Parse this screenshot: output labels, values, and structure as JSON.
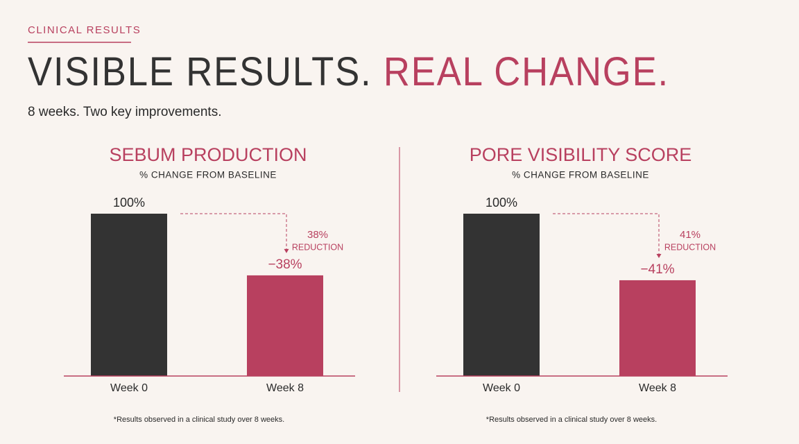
{
  "header": {
    "eyebrow": "CLINICAL RESULTS",
    "title_dark": "VISIBLE RESULTS.",
    "title_accent": "REAL CHANGE.",
    "subtitle": "8 weeks. Two key improvements."
  },
  "chart_data": [
    {
      "type": "bar",
      "title": "SEBUM PRODUCTION",
      "subtitle": "% CHANGE FROM BASELINE",
      "categories": [
        "Week 0",
        "Week 8"
      ],
      "values": [
        100,
        62
      ],
      "value_labels": [
        "100%",
        null
      ],
      "colors": [
        "#333333",
        "#b8405f"
      ],
      "change": {
        "value": -38,
        "label": "−38%"
      },
      "reduction": {
        "value": 38,
        "label": "38%",
        "text": "REDUCTION"
      },
      "footnote": "*Results observed in a clinical study over 8 weeks."
    },
    {
      "type": "bar",
      "title": "PORE VISIBILITY SCORE",
      "subtitle": "% CHANGE FROM BASELINE",
      "categories": [
        "Week 0",
        "Week 8"
      ],
      "values": [
        100,
        59
      ],
      "value_labels": [
        "100%",
        null
      ],
      "colors": [
        "#333333",
        "#b8405f"
      ],
      "change": {
        "value": -41,
        "label": "−41%"
      },
      "reduction": {
        "value": 41,
        "label": "41%",
        "text": "REDUCTION"
      },
      "footnote": "*Results observed in a clinical study over 8 weeks."
    }
  ]
}
